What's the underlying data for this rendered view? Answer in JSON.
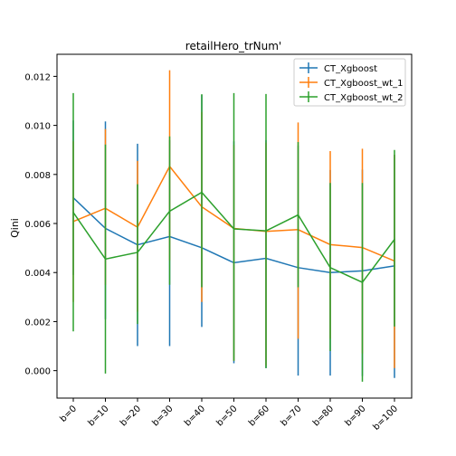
{
  "chart_data": {
    "type": "line",
    "title": "retailHero_trNum'",
    "xlabel": "",
    "ylabel": "Qini",
    "categories": [
      "b=0",
      "b=10",
      "b=20",
      "b=30",
      "b=40",
      "b=50",
      "b=60",
      "b=70",
      "b=80",
      "b=90",
      "b=100"
    ],
    "ylim": [
      -0.00112,
      0.0129
    ],
    "yticks": [
      0.0,
      0.002,
      0.004,
      0.006,
      0.008,
      0.01,
      0.012
    ],
    "ytick_labels": [
      "0.000",
      "0.002",
      "0.004",
      "0.006",
      "0.008",
      "0.010",
      "0.012"
    ],
    "grid": false,
    "legend_position": "top-right",
    "series": [
      {
        "name": "CT_Xgboost",
        "color": "#1f77b4",
        "values": [
          0.00705,
          0.0058,
          0.00513,
          0.00547,
          0.00501,
          0.0044,
          0.00458,
          0.0042,
          0.004,
          0.00407,
          0.00427
        ],
        "err_low": [
          0.0039,
          0.0021,
          0.001,
          0.001,
          0.00178,
          0.0003,
          0.0001,
          -0.0002,
          -0.0002,
          -0.00022,
          -0.0003
        ],
        "err_high": [
          0.0102,
          0.01016,
          0.00925,
          0.0094,
          0.01124,
          0.00935,
          0.0094,
          0.00918,
          0.00818,
          0.0082,
          0.0088
        ]
      },
      {
        "name": "CT_Xgboost_wt_1",
        "color": "#ff7f0e",
        "values": [
          0.00608,
          0.00662,
          0.00585,
          0.00833,
          0.00668,
          0.0058,
          0.00568,
          0.00575,
          0.00514,
          0.00502,
          0.00447
        ],
        "err_low": [
          0.0028,
          0.0035,
          0.0024,
          0.0045,
          0.0028,
          0.0004,
          0.0002,
          0.0013,
          0.0013,
          0.0007,
          0.0001
        ],
        "err_high": [
          0.00935,
          0.00985,
          0.00855,
          0.01225,
          0.01055,
          0.0092,
          0.0093,
          0.01012,
          0.00895,
          0.00905,
          0.0088
        ]
      },
      {
        "name": "CT_Xgboost_wt_2",
        "color": "#2ca02c",
        "values": [
          0.00645,
          0.00455,
          0.00482,
          0.0065,
          0.00727,
          0.00578,
          0.0057,
          0.00635,
          0.0042,
          0.0036,
          0.00535
        ],
        "err_low": [
          0.0016,
          -0.00012,
          0.0019,
          0.0035,
          0.0034,
          0.0004,
          0.0001,
          0.0034,
          0.0008,
          -0.00045,
          0.0018
        ],
        "err_high": [
          0.01132,
          0.00922,
          0.0076,
          0.00955,
          0.01127,
          0.01132,
          0.01128,
          0.00932,
          0.00765,
          0.00765,
          0.009
        ]
      }
    ]
  }
}
